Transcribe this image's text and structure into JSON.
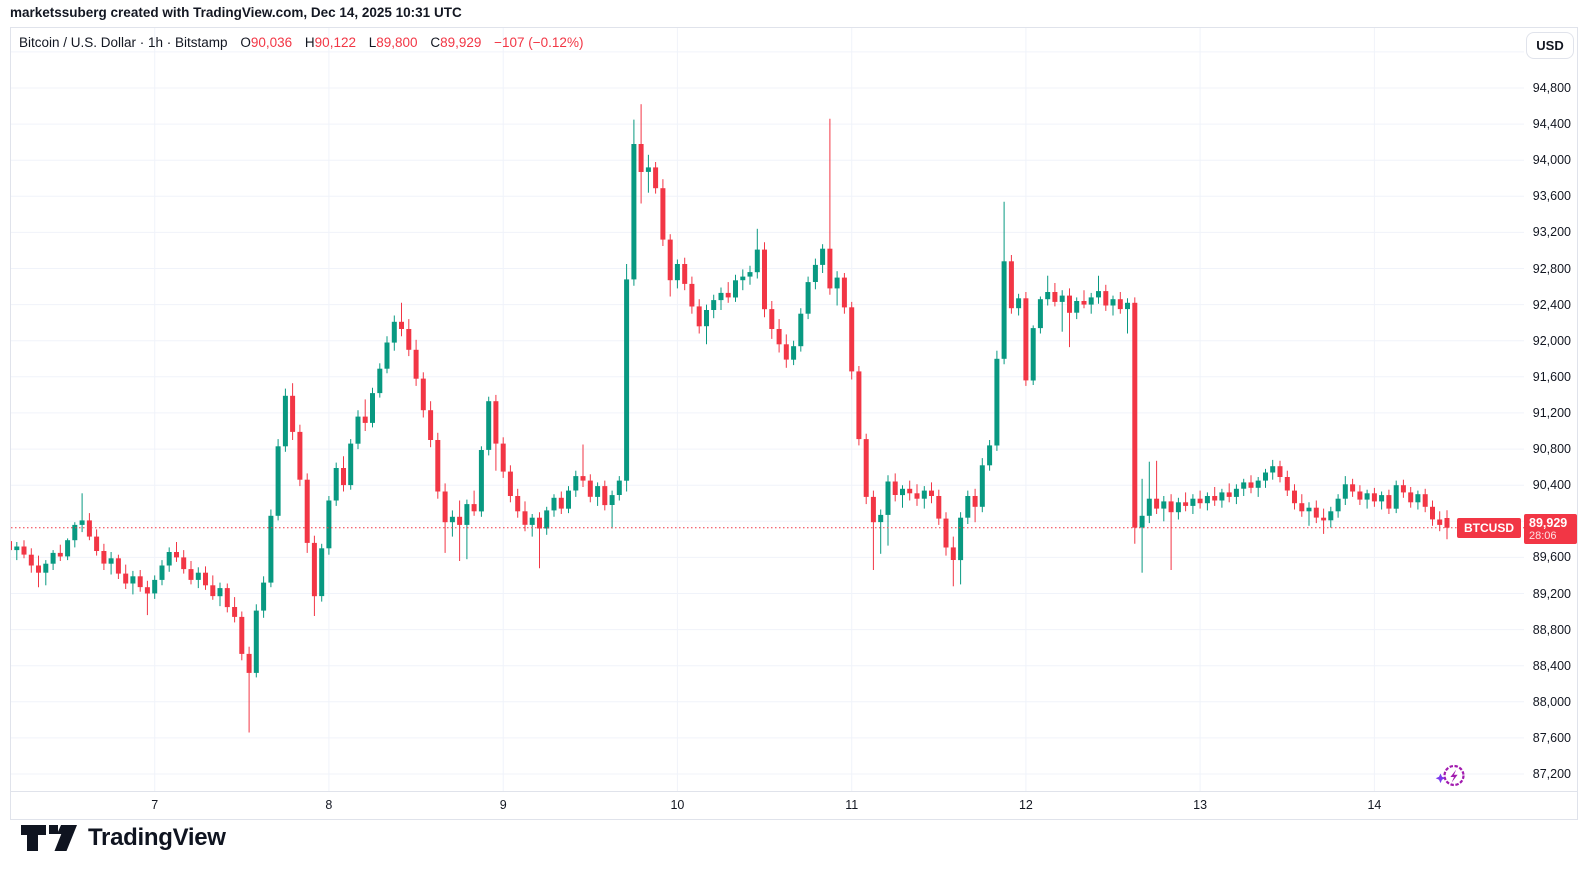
{
  "header": {
    "attribution": "marketssuberg created with TradingView.com, Dec 14, 2025 10:31 UTC"
  },
  "legend": {
    "instrument": "Bitcoin / U.S. Dollar · 1h · Bitstamp",
    "o_label": "O",
    "o_value": "90,036",
    "h_label": "H",
    "h_value": "90,122",
    "l_label": "L",
    "l_value": "89,800",
    "c_label": "C",
    "c_value": "89,929",
    "change": "−107 (−0.12%)"
  },
  "price_scale": {
    "currency_button": "USD",
    "labels": [
      "94,800",
      "94,400",
      "94,000",
      "93,600",
      "93,200",
      "92,800",
      "92,400",
      "92,000",
      "91,600",
      "91,200",
      "90,800",
      "90,400",
      "90,000",
      "89,600",
      "89,200",
      "88,800",
      "88,400",
      "88,000",
      "87,600",
      "87,200"
    ],
    "values": [
      94800,
      94400,
      94000,
      93600,
      93200,
      92800,
      92400,
      92000,
      91600,
      91200,
      90800,
      90400,
      90000,
      89600,
      89200,
      88800,
      88400,
      88000,
      87600,
      87200
    ],
    "price_line": {
      "symbol": "BTCUSD",
      "price": "89,929",
      "countdown": "28:06",
      "value": 89929
    }
  },
  "time_scale": {
    "labels": [
      "7",
      "8",
      "9",
      "10",
      "11",
      "12",
      "13",
      "14"
    ]
  },
  "footer": {
    "brand": "TradingView"
  },
  "icons": {
    "boost": "lightning-in-circle-with-sparkle"
  },
  "colors": {
    "up": "#089981",
    "down": "#f23645",
    "grid": "#f0f3fa",
    "border": "#e0e3eb",
    "text": "#131722",
    "price_line": "#f23645",
    "badge_bg": "#f23645",
    "boost_purple": "#a21caf",
    "sparkle_purple": "#7c3aed"
  },
  "chart_data": {
    "type": "candlestick",
    "symbol": "BTCUSD",
    "exchange": "Bitstamp",
    "interval": "1h",
    "title": "Bitcoin / U.S. Dollar",
    "current_bar": {
      "open": 90036,
      "high": 90122,
      "low": 89800,
      "close": 89929,
      "change": -107,
      "change_pct": -0.12
    },
    "current_price": 89929,
    "countdown": "28:06",
    "y_axis": {
      "min": 87200,
      "max": 94800,
      "step": 400,
      "currency": "USD"
    },
    "x_axis": {
      "unit": "hours, Dec 6 04:00 – Dec 14 10:00 UTC",
      "day_labels": [
        "7",
        "8",
        "9",
        "10",
        "11",
        "12",
        "13",
        "14"
      ],
      "day_tick_indices": [
        20,
        44,
        68,
        92,
        116,
        140,
        164,
        188
      ]
    },
    "grid": true,
    "legend_position": "top-left",
    "candles": [
      [
        89780,
        89830,
        89620,
        89680
      ],
      [
        89680,
        89770,
        89570,
        89720
      ],
      [
        89720,
        89790,
        89590,
        89630
      ],
      [
        89630,
        89700,
        89430,
        89510
      ],
      [
        89510,
        89620,
        89270,
        89430
      ],
      [
        89430,
        89570,
        89290,
        89530
      ],
      [
        89530,
        89680,
        89460,
        89650
      ],
      [
        89650,
        89740,
        89560,
        89610
      ],
      [
        89610,
        89810,
        89570,
        89790
      ],
      [
        89790,
        89990,
        89710,
        89960
      ],
      [
        89960,
        90310,
        89880,
        90010
      ],
      [
        90010,
        90090,
        89790,
        89830
      ],
      [
        89830,
        89910,
        89620,
        89670
      ],
      [
        89670,
        89750,
        89460,
        89530
      ],
      [
        89530,
        89660,
        89410,
        89590
      ],
      [
        89590,
        89630,
        89360,
        89420
      ],
      [
        89420,
        89520,
        89250,
        89310
      ],
      [
        89310,
        89450,
        89190,
        89390
      ],
      [
        89390,
        89460,
        89220,
        89270
      ],
      [
        89270,
        89340,
        88960,
        89200
      ],
      [
        89200,
        89400,
        89140,
        89350
      ],
      [
        89350,
        89570,
        89290,
        89510
      ],
      [
        89510,
        89710,
        89440,
        89660
      ],
      [
        89660,
        89770,
        89550,
        89600
      ],
      [
        89600,
        89680,
        89420,
        89470
      ],
      [
        89470,
        89560,
        89300,
        89350
      ],
      [
        89350,
        89490,
        89260,
        89430
      ],
      [
        89430,
        89500,
        89240,
        89290
      ],
      [
        89290,
        89400,
        89130,
        89170
      ],
      [
        89170,
        89320,
        89060,
        89260
      ],
      [
        89260,
        89310,
        88990,
        89050
      ],
      [
        89050,
        89160,
        88880,
        88940
      ],
      [
        88940,
        89000,
        88460,
        88530
      ],
      [
        88530,
        88610,
        87660,
        88320
      ],
      [
        88320,
        89080,
        88270,
        89010
      ],
      [
        89010,
        89390,
        88930,
        89320
      ],
      [
        89320,
        90130,
        89270,
        90060
      ],
      [
        90060,
        90910,
        90010,
        90830
      ],
      [
        90830,
        91470,
        90770,
        91390
      ],
      [
        91390,
        91530,
        90900,
        90990
      ],
      [
        90990,
        91070,
        90390,
        90460
      ],
      [
        90460,
        90530,
        89650,
        89760
      ],
      [
        89760,
        89840,
        88950,
        89170
      ],
      [
        89170,
        89750,
        89110,
        89700
      ],
      [
        89700,
        90280,
        89630,
        90230
      ],
      [
        90230,
        90650,
        90170,
        90590
      ],
      [
        90590,
        90720,
        90330,
        90400
      ],
      [
        90400,
        90910,
        90350,
        90860
      ],
      [
        90860,
        91230,
        90800,
        91160
      ],
      [
        91160,
        91350,
        91000,
        91090
      ],
      [
        91090,
        91480,
        91040,
        91420
      ],
      [
        91420,
        91750,
        91370,
        91690
      ],
      [
        91690,
        92050,
        91640,
        91980
      ],
      [
        91980,
        92280,
        91890,
        92210
      ],
      [
        92210,
        92420,
        92050,
        92130
      ],
      [
        92130,
        92240,
        91830,
        91900
      ],
      [
        91900,
        92010,
        91500,
        91580
      ],
      [
        91580,
        91650,
        91150,
        91230
      ],
      [
        91230,
        91330,
        90820,
        90900
      ],
      [
        90900,
        90980,
        90250,
        90330
      ],
      [
        90330,
        90420,
        89650,
        89990
      ],
      [
        89990,
        90120,
        89830,
        90050
      ],
      [
        90050,
        90230,
        89560,
        89960
      ],
      [
        89960,
        90240,
        89580,
        90190
      ],
      [
        90190,
        90340,
        90060,
        90110
      ],
      [
        90110,
        90830,
        90050,
        90790
      ],
      [
        90790,
        91380,
        90730,
        91330
      ],
      [
        91330,
        91400,
        90560,
        90860
      ],
      [
        90860,
        90930,
        90480,
        90550
      ],
      [
        90550,
        90620,
        90210,
        90280
      ],
      [
        90280,
        90360,
        90040,
        90110
      ],
      [
        90110,
        90220,
        89890,
        89960
      ],
      [
        89960,
        90080,
        89830,
        90040
      ],
      [
        90040,
        90100,
        89480,
        89920
      ],
      [
        89920,
        90160,
        89850,
        90120
      ],
      [
        90120,
        90300,
        90050,
        90260
      ],
      [
        90260,
        90330,
        90080,
        90140
      ],
      [
        90140,
        90390,
        90090,
        90340
      ],
      [
        90340,
        90560,
        90270,
        90500
      ],
      [
        90500,
        90850,
        90380,
        90450
      ],
      [
        90450,
        90520,
        90210,
        90270
      ],
      [
        90270,
        90430,
        90170,
        90390
      ],
      [
        90390,
        90450,
        90120,
        90180
      ],
      [
        90180,
        90340,
        89920,
        90290
      ],
      [
        90290,
        90500,
        90230,
        90450
      ],
      [
        90450,
        92850,
        90330,
        92680
      ],
      [
        92680,
        94450,
        92610,
        94180
      ],
      [
        94180,
        94620,
        93520,
        93870
      ],
      [
        93870,
        94060,
        93640,
        93920
      ],
      [
        93920,
        93980,
        93630,
        93690
      ],
      [
        93690,
        93790,
        93050,
        93120
      ],
      [
        93120,
        93180,
        92490,
        92670
      ],
      [
        92670,
        92900,
        92580,
        92850
      ],
      [
        92850,
        92920,
        92560,
        92630
      ],
      [
        92630,
        92710,
        92300,
        92380
      ],
      [
        92380,
        92460,
        92080,
        92160
      ],
      [
        92160,
        92400,
        91960,
        92340
      ],
      [
        92340,
        92510,
        92250,
        92450
      ],
      [
        92450,
        92590,
        92340,
        92530
      ],
      [
        92530,
        92650,
        92420,
        92480
      ],
      [
        92480,
        92730,
        92430,
        92670
      ],
      [
        92670,
        92790,
        92560,
        92710
      ],
      [
        92710,
        92830,
        92620,
        92760
      ],
      [
        92760,
        93240,
        92690,
        93010
      ],
      [
        93010,
        93090,
        92260,
        92350
      ],
      [
        92350,
        92440,
        92020,
        92130
      ],
      [
        92130,
        92240,
        91870,
        91960
      ],
      [
        91960,
        92070,
        91700,
        91790
      ],
      [
        91790,
        92000,
        91730,
        91940
      ],
      [
        91940,
        92360,
        91880,
        92300
      ],
      [
        92300,
        92710,
        92240,
        92650
      ],
      [
        92650,
        92910,
        92570,
        92840
      ],
      [
        92840,
        93070,
        92750,
        93020
      ],
      [
        93020,
        94460,
        92510,
        92580
      ],
      [
        92580,
        92770,
        92390,
        92700
      ],
      [
        92700,
        92750,
        92300,
        92370
      ],
      [
        92370,
        92430,
        91570,
        91660
      ],
      [
        91660,
        91720,
        90840,
        90910
      ],
      [
        90910,
        90970,
        90190,
        90270
      ],
      [
        90270,
        90340,
        89460,
        89990
      ],
      [
        89990,
        90130,
        89640,
        90070
      ],
      [
        90070,
        90510,
        89730,
        90440
      ],
      [
        90440,
        90530,
        90220,
        90290
      ],
      [
        90290,
        90400,
        90150,
        90360
      ],
      [
        90360,
        90450,
        90230,
        90310
      ],
      [
        90310,
        90410,
        90170,
        90250
      ],
      [
        90250,
        90390,
        90140,
        90340
      ],
      [
        90340,
        90430,
        90200,
        90280
      ],
      [
        90280,
        90350,
        89960,
        90030
      ],
      [
        90030,
        90100,
        89620,
        89710
      ],
      [
        89710,
        89830,
        89280,
        89570
      ],
      [
        89570,
        90100,
        89300,
        90040
      ],
      [
        90040,
        90340,
        89970,
        90280
      ],
      [
        90280,
        90360,
        89990,
        90160
      ],
      [
        90160,
        90700,
        90100,
        90620
      ],
      [
        90620,
        90900,
        90560,
        90840
      ],
      [
        90840,
        91890,
        90780,
        91800
      ],
      [
        91800,
        93540,
        91740,
        92880
      ],
      [
        92880,
        92950,
        92300,
        92360
      ],
      [
        92360,
        92520,
        92280,
        92470
      ],
      [
        92470,
        92540,
        91500,
        91560
      ],
      [
        91560,
        92170,
        91510,
        92140
      ],
      [
        92140,
        92490,
        92080,
        92460
      ],
      [
        92460,
        92720,
        92390,
        92540
      ],
      [
        92540,
        92640,
        92380,
        92430
      ],
      [
        92430,
        92560,
        92100,
        92500
      ],
      [
        92500,
        92580,
        91930,
        92310
      ],
      [
        92310,
        92480,
        92240,
        92440
      ],
      [
        92440,
        92560,
        92360,
        92400
      ],
      [
        92400,
        92530,
        92300,
        92480
      ],
      [
        92480,
        92720,
        92410,
        92550
      ],
      [
        92550,
        92620,
        92330,
        92390
      ],
      [
        92390,
        92500,
        92280,
        92460
      ],
      [
        92460,
        92540,
        92300,
        92350
      ],
      [
        92350,
        92470,
        92080,
        92420
      ],
      [
        92420,
        92480,
        89750,
        89930
      ],
      [
        89930,
        90470,
        89430,
        90060
      ],
      [
        90060,
        90660,
        89980,
        90250
      ],
      [
        90250,
        90670,
        90080,
        90140
      ],
      [
        90140,
        90280,
        90000,
        90220
      ],
      [
        90220,
        90300,
        89460,
        90100
      ],
      [
        90100,
        90260,
        90020,
        90210
      ],
      [
        90210,
        90320,
        90110,
        90170
      ],
      [
        90170,
        90300,
        90080,
        90250
      ],
      [
        90250,
        90340,
        90140,
        90200
      ],
      [
        90200,
        90320,
        90120,
        90280
      ],
      [
        90280,
        90380,
        90170,
        90230
      ],
      [
        90230,
        90360,
        90150,
        90320
      ],
      [
        90320,
        90420,
        90210,
        90270
      ],
      [
        90270,
        90410,
        90190,
        90360
      ],
      [
        90360,
        90470,
        90280,
        90430
      ],
      [
        90430,
        90510,
        90310,
        90370
      ],
      [
        90370,
        90490,
        90270,
        90450
      ],
      [
        90450,
        90580,
        90370,
        90540
      ],
      [
        90540,
        90680,
        90460,
        90610
      ],
      [
        90610,
        90670,
        90430,
        90490
      ],
      [
        90490,
        90560,
        90280,
        90340
      ],
      [
        90340,
        90410,
        90130,
        90200
      ],
      [
        90200,
        90300,
        90050,
        90110
      ],
      [
        90110,
        90210,
        89950,
        90150
      ],
      [
        90150,
        90230,
        89980,
        90040
      ],
      [
        90040,
        90140,
        89860,
        90010
      ],
      [
        90010,
        90160,
        89930,
        90110
      ],
      [
        90110,
        90300,
        90040,
        90250
      ],
      [
        90250,
        90500,
        90180,
        90410
      ],
      [
        90410,
        90470,
        90270,
        90330
      ],
      [
        90330,
        90400,
        90180,
        90240
      ],
      [
        90240,
        90350,
        90140,
        90310
      ],
      [
        90310,
        90370,
        90160,
        90220
      ],
      [
        90220,
        90330,
        90130,
        90290
      ],
      [
        90290,
        90350,
        90080,
        90140
      ],
      [
        90140,
        90450,
        90090,
        90400
      ],
      [
        90400,
        90460,
        90260,
        90320
      ],
      [
        90320,
        90380,
        90150,
        90210
      ],
      [
        90210,
        90340,
        90130,
        90300
      ],
      [
        90300,
        90360,
        90100,
        90160
      ],
      [
        90160,
        90230,
        89950,
        90020
      ],
      [
        90020,
        90110,
        89890,
        89960
      ],
      [
        90036,
        90122,
        89800,
        89929
      ]
    ]
  }
}
